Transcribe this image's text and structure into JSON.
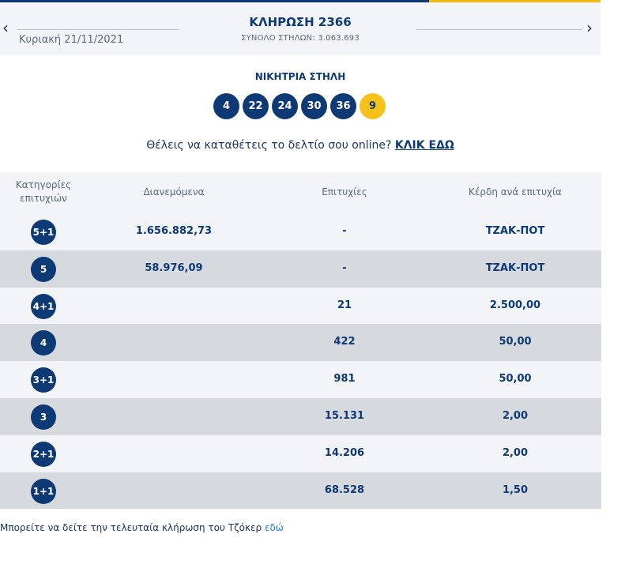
{
  "header": {
    "date": "Κυριακή 21/11/2021",
    "title": "ΚΛΗΡΩΣΗ 2366",
    "total_columns": "ΣΥΝΟΛΟ ΣΤΗΛΩΝ: 3.063.693",
    "prev_arrow": "‹",
    "next_arrow": "›"
  },
  "winning": {
    "label": "ΝΙΚΗΤΡΙΑ ΣΤΗΛΗ",
    "numbers": [
      "4",
      "22",
      "24",
      "30",
      "36"
    ],
    "joker": "9"
  },
  "online": {
    "text": "Θέλεις να καταθέτεις το δελτίο σου online? ",
    "link": "ΚΛΙΚ ΕΔΩ"
  },
  "table": {
    "headers": {
      "category_line1": "Κατηγορίες",
      "category_line2": "επιτυχιών",
      "distributed": "Διανεμόμενα",
      "winners": "Επιτυχίες",
      "prize": "Κέρδη ανά επιτυχία"
    },
    "rows": [
      {
        "category": "5+1",
        "distributed": "1.656.882,73",
        "winners": "-",
        "prize": "ΤΖΑΚ-ΠΟΤ"
      },
      {
        "category": "5",
        "distributed": "58.976,09",
        "winners": "-",
        "prize": "ΤΖΑΚ-ΠΟΤ"
      },
      {
        "category": "4+1",
        "distributed": "",
        "winners": "21",
        "prize": "2.500,00"
      },
      {
        "category": "4",
        "distributed": "",
        "winners": "422",
        "prize": "50,00"
      },
      {
        "category": "3+1",
        "distributed": "",
        "winners": "981",
        "prize": "50,00"
      },
      {
        "category": "3",
        "distributed": "",
        "winners": "15.131",
        "prize": "2,00"
      },
      {
        "category": "2+1",
        "distributed": "",
        "winners": "14.206",
        "prize": "2,00"
      },
      {
        "category": "1+1",
        "distributed": "",
        "winners": "68.528",
        "prize": "1,50"
      }
    ]
  },
  "footer": {
    "text": "Μπορείτε να δείτε την τελευταία κλήρωση του Τζόκερ ",
    "link": "εδώ"
  },
  "colors": {
    "navy": "#0d3a75",
    "joker_yellow": "#f6c21a",
    "link_blue": "#2a7ad6"
  }
}
